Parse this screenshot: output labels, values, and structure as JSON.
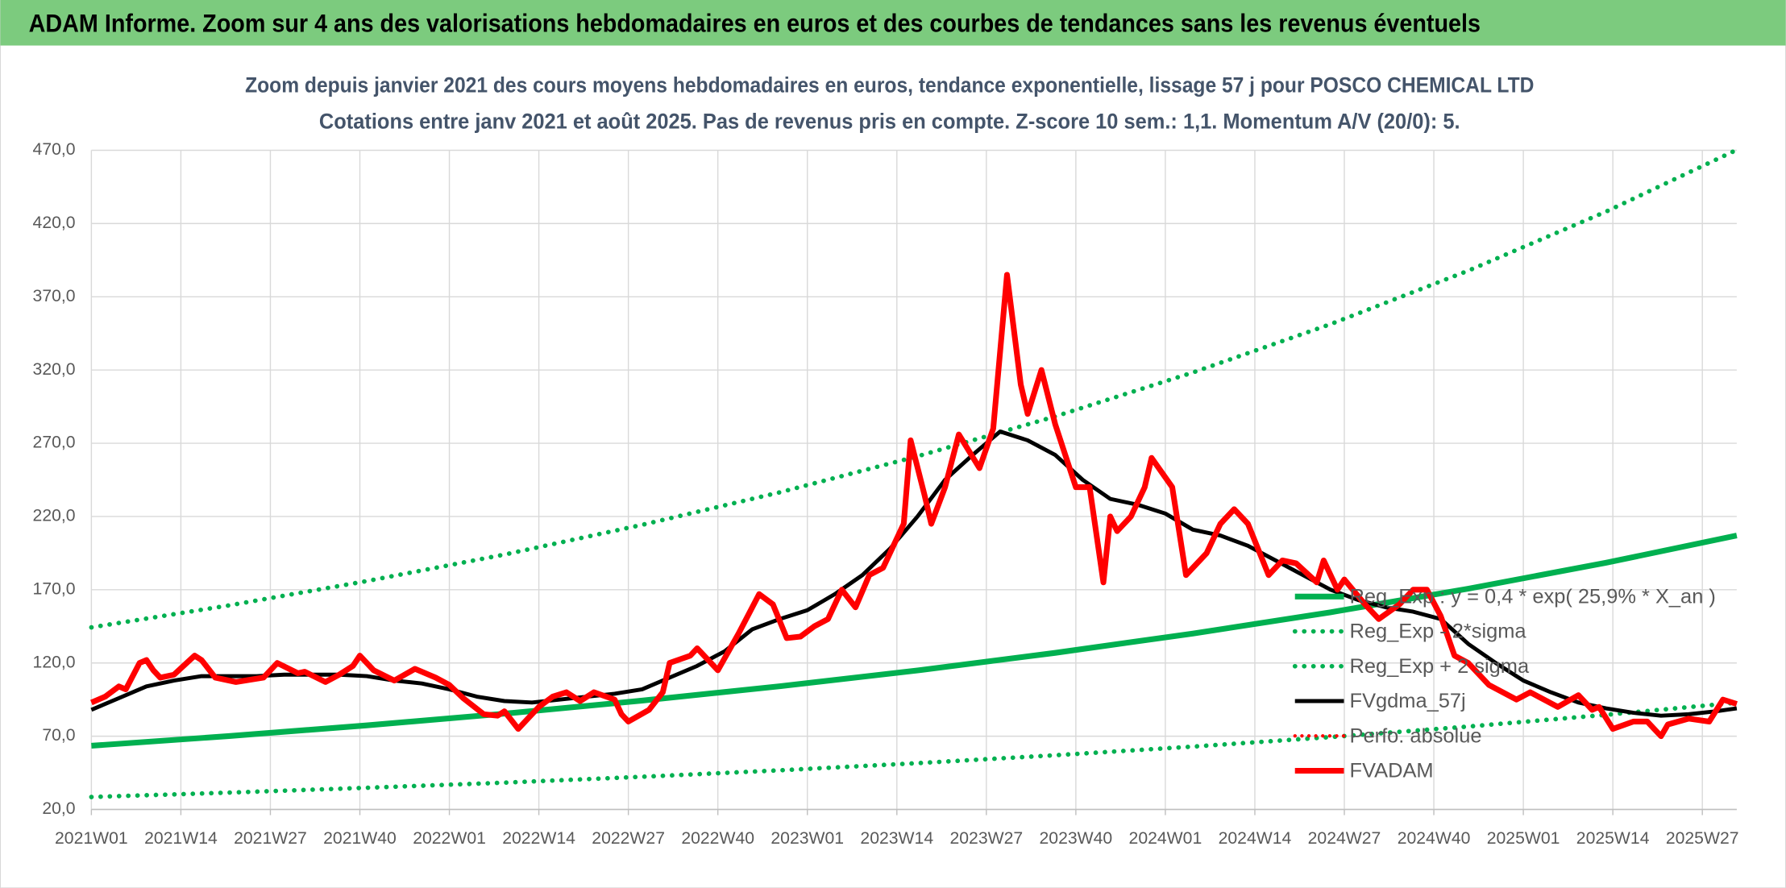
{
  "header": "ADAM Informe. Zoom sur 4 ans des valorisations hebdomadaires en euros et des courbes de tendances sans les revenus éventuels",
  "chart_data": {
    "type": "line",
    "title": "Zoom depuis janvier 2021 des cours moyens hebdomadaires en euros, tendance exponentielle, lissage 57 j pour POSCO CHEMICAL LTD",
    "subtitle": "Cotations entre janv 2021 et août 2025. Pas de revenus pris en compte. Z-score 10 sem.: 1,1. Momentum A/V (20/0): 5.",
    "xlim": [
      0,
      239
    ],
    "xticks": [
      {
        "value": 0,
        "label": "2021W01"
      },
      {
        "value": 13,
        "label": "2021W14"
      },
      {
        "value": 26,
        "label": "2021W27"
      },
      {
        "value": 39,
        "label": "2021W40"
      },
      {
        "value": 52,
        "label": "2022W01"
      },
      {
        "value": 65,
        "label": "2022W14"
      },
      {
        "value": 78,
        "label": "2022W27"
      },
      {
        "value": 91,
        "label": "2022W40"
      },
      {
        "value": 104,
        "label": "2023W01"
      },
      {
        "value": 117,
        "label": "2023W14"
      },
      {
        "value": 130,
        "label": "2023W27"
      },
      {
        "value": 143,
        "label": "2023W40"
      },
      {
        "value": 156,
        "label": "2024W01"
      },
      {
        "value": 169,
        "label": "2024W14"
      },
      {
        "value": 182,
        "label": "2024W27"
      },
      {
        "value": 195,
        "label": "2024W40"
      },
      {
        "value": 208,
        "label": "2025W01"
      },
      {
        "value": 221,
        "label": "2025W14"
      },
      {
        "value": 234,
        "label": "2025W27"
      }
    ],
    "ylim": [
      20,
      470
    ],
    "yticks": [
      {
        "value": 20,
        "label": "20,0"
      },
      {
        "value": 70,
        "label": "70,0"
      },
      {
        "value": 120,
        "label": "120,0"
      },
      {
        "value": 170,
        "label": "170,0"
      },
      {
        "value": 220,
        "label": "220,0"
      },
      {
        "value": 270,
        "label": "270,0"
      },
      {
        "value": 320,
        "label": "320,0"
      },
      {
        "value": 370,
        "label": "370,0"
      },
      {
        "value": 420,
        "label": "420,0"
      },
      {
        "value": 470,
        "label": "470,0"
      }
    ],
    "grid": true,
    "legend": "right",
    "series": [
      {
        "name": "Reg_Exp : y = 0,4 * exp( 25,9% *  X_an )",
        "color": "#00b050",
        "style": "solid",
        "width": 5,
        "x": [
          0,
          20,
          40,
          60,
          80,
          100,
          120,
          140,
          160,
          180,
          200,
          220,
          239
        ],
        "values": [
          63.5,
          70.1,
          77.4,
          85.4,
          94.3,
          104.1,
          114.9,
          126.9,
          140.1,
          154.6,
          170.7,
          188.4,
          207.0
        ]
      },
      {
        "name": "Reg_Exp - 2*sigma",
        "color": "#00b050",
        "style": "dotted",
        "width": 4,
        "x": [
          0,
          20,
          40,
          60,
          80,
          100,
          120,
          140,
          160,
          180,
          200,
          220,
          239
        ],
        "values": [
          28.5,
          31.5,
          34.8,
          38.3,
          42.3,
          46.7,
          51.6,
          57.0,
          62.9,
          69.4,
          76.6,
          84.6,
          92.9
        ]
      },
      {
        "name": "Reg_Exp + 2 sigma",
        "color": "#00b050",
        "style": "dotted",
        "width": 4,
        "x": [
          0,
          20,
          40,
          60,
          80,
          100,
          120,
          140,
          160,
          180,
          200,
          220,
          239
        ],
        "values": [
          144.3,
          159.3,
          175.9,
          194.0,
          214.3,
          236.5,
          261.1,
          288.3,
          318.3,
          351.3,
          387.8,
          428.1,
          470.3
        ]
      },
      {
        "name": "FVgdma_57j",
        "color": "#000000",
        "style": "solid",
        "width": 3.5,
        "x": [
          0,
          4,
          8,
          12,
          16,
          20,
          24,
          28,
          32,
          36,
          40,
          44,
          48,
          52,
          56,
          60,
          64,
          68,
          72,
          76,
          80,
          84,
          88,
          92,
          96,
          100,
          104,
          108,
          112,
          116,
          120,
          124,
          128,
          132,
          136,
          140,
          144,
          148,
          152,
          156,
          160,
          164,
          168,
          172,
          176,
          180,
          184,
          188,
          192,
          196,
          200,
          204,
          208,
          212,
          216,
          220,
          224,
          228,
          232,
          236,
          239
        ],
        "values": [
          88,
          96,
          104,
          108,
          111,
          111,
          111,
          112,
          112,
          112,
          111,
          108,
          106,
          102,
          97,
          94,
          93,
          95,
          97,
          99,
          102,
          110,
          118,
          128,
          143,
          150,
          156,
          167,
          180,
          198,
          220,
          245,
          262,
          278,
          272,
          262,
          245,
          232,
          228,
          222,
          211,
          207,
          200,
          190,
          180,
          170,
          163,
          158,
          155,
          150,
          133,
          120,
          108,
          100,
          93,
          89,
          86,
          84,
          85,
          87,
          89
        ]
      },
      {
        "name": "Perfo. absolue",
        "color": "#ff0000",
        "style": "dotted",
        "width": 3
      },
      {
        "name": "FVADAM",
        "color": "#ff0000",
        "style": "solid",
        "width": 5,
        "x": [
          0,
          2,
          4,
          5,
          7,
          8,
          9,
          10,
          12,
          15,
          16,
          18,
          21,
          25,
          27,
          30,
          31,
          34,
          36,
          38,
          39,
          41,
          44,
          47,
          50,
          52,
          54,
          57,
          59,
          60,
          62,
          65,
          67,
          69,
          71,
          73,
          76,
          77,
          78,
          81,
          83,
          84,
          87,
          88,
          91,
          94,
          97,
          99,
          101,
          103,
          105,
          107,
          109,
          111,
          113,
          115,
          118,
          119,
          121,
          122,
          124,
          126,
          129,
          131,
          133,
          135,
          136,
          138,
          140,
          143,
          145,
          147,
          148,
          149,
          151,
          153,
          154,
          157,
          159,
          162,
          164,
          166,
          168,
          171,
          173,
          175,
          178,
          179,
          181,
          182,
          185,
          187,
          190,
          192,
          194,
          196,
          198,
          200,
          203,
          207,
          209,
          213,
          216,
          218,
          219,
          221,
          224,
          226,
          228,
          229,
          232,
          235,
          237,
          239
        ],
        "values": [
          93,
          97,
          104,
          102,
          120,
          122,
          115,
          110,
          112,
          125,
          122,
          110,
          107,
          110,
          120,
          113,
          114,
          107,
          112,
          118,
          125,
          115,
          108,
          116,
          110,
          105,
          96,
          85,
          84,
          87,
          75,
          90,
          97,
          100,
          94,
          100,
          95,
          85,
          80,
          88,
          100,
          120,
          125,
          130,
          115,
          140,
          167,
          160,
          137,
          138,
          145,
          150,
          170,
          158,
          180,
          185,
          215,
          272,
          235,
          215,
          240,
          276,
          253,
          280,
          385,
          310,
          290,
          320,
          283,
          240,
          240,
          175,
          220,
          210,
          220,
          240,
          260,
          240,
          180,
          195,
          215,
          225,
          215,
          180,
          190,
          188,
          175,
          190,
          170,
          177,
          160,
          150,
          160,
          170,
          170,
          152,
          125,
          120,
          105,
          95,
          100,
          90,
          98,
          88,
          90,
          75,
          80,
          80,
          70,
          78,
          82,
          80,
          95,
          92
        ]
      }
    ]
  }
}
